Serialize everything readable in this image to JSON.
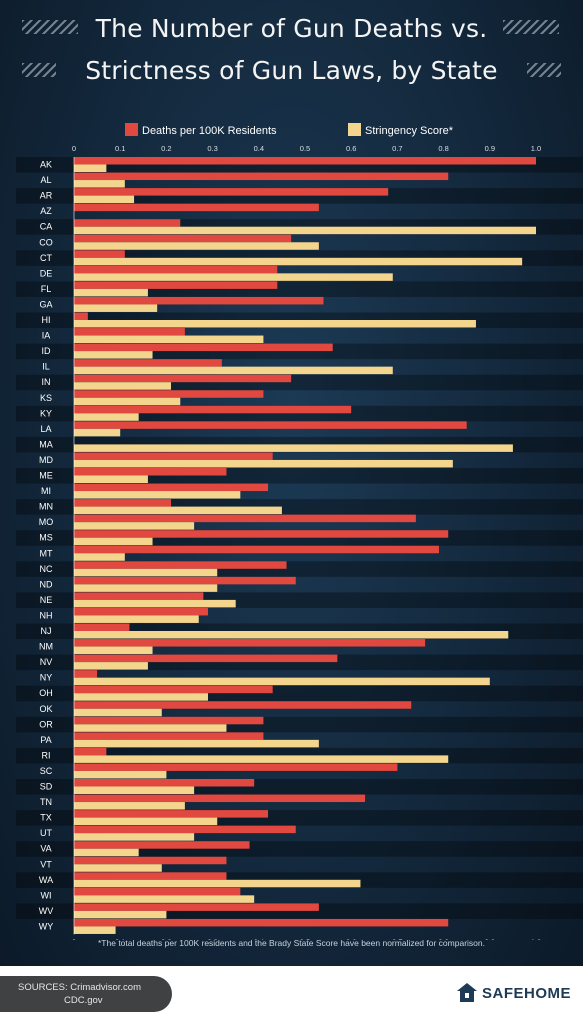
{
  "title_line1": "The Number of Gun Deaths vs.",
  "title_line2": "Strictness of Gun Laws, by State",
  "footnote": "*The total deaths per 100K residents and the Brady State Score have been normalized for comparison.",
  "sources": {
    "line1": "SOURCES: Crimadvisor.com",
    "line2": "CDC.gov"
  },
  "brand": "SAFEHOME",
  "colors": {
    "deaths": "#e1483f",
    "stringency": "#f4d58e",
    "background": "#13283c"
  },
  "chart_data": {
    "type": "bar",
    "orientation": "horizontal",
    "xlim": [
      0,
      1.0
    ],
    "x_ticks": [
      "0",
      "0.1",
      "0.2",
      "0.3",
      "0.4",
      "0.5",
      "0.6",
      "0.7",
      "0.8",
      "0.9",
      "1.0"
    ],
    "legend_position": "top",
    "categories": [
      "AK",
      "AL",
      "AR",
      "AZ",
      "CA",
      "CO",
      "CT",
      "DE",
      "FL",
      "GA",
      "HI",
      "IA",
      "ID",
      "IL",
      "IN",
      "KS",
      "KY",
      "LA",
      "MA",
      "MD",
      "ME",
      "MI",
      "MN",
      "MO",
      "MS",
      "MT",
      "NC",
      "ND",
      "NE",
      "NH",
      "NJ",
      "NM",
      "NV",
      "NY",
      "OH",
      "OK",
      "OR",
      "PA",
      "RI",
      "SC",
      "SD",
      "TN",
      "TX",
      "UT",
      "VA",
      "VT",
      "WA",
      "WI",
      "WV",
      "WY"
    ],
    "series": [
      {
        "name": "Deaths per 100K Residents",
        "values": [
          1.0,
          0.81,
          0.68,
          0.53,
          0.23,
          0.47,
          0.11,
          0.44,
          0.44,
          0.54,
          0.03,
          0.24,
          0.56,
          0.32,
          0.47,
          0.41,
          0.6,
          0.85,
          0.0,
          0.43,
          0.33,
          0.42,
          0.21,
          0.74,
          0.81,
          0.79,
          0.46,
          0.48,
          0.28,
          0.29,
          0.12,
          0.76,
          0.57,
          0.05,
          0.43,
          0.73,
          0.41,
          0.41,
          0.07,
          0.7,
          0.39,
          0.63,
          0.42,
          0.48,
          0.38,
          0.33,
          0.33,
          0.36,
          0.53,
          0.81
        ]
      },
      {
        "name": "Stringency Score*",
        "values": [
          0.07,
          0.11,
          0.13,
          0.0,
          1.0,
          0.53,
          0.97,
          0.69,
          0.16,
          0.18,
          0.87,
          0.41,
          0.17,
          0.69,
          0.21,
          0.23,
          0.14,
          0.1,
          0.95,
          0.82,
          0.16,
          0.36,
          0.45,
          0.26,
          0.17,
          0.11,
          0.31,
          0.31,
          0.35,
          0.27,
          0.94,
          0.17,
          0.16,
          0.9,
          0.29,
          0.19,
          0.33,
          0.53,
          0.81,
          0.2,
          0.26,
          0.24,
          0.31,
          0.26,
          0.14,
          0.19,
          0.62,
          0.39,
          0.2,
          0.09
        ]
      }
    ]
  }
}
